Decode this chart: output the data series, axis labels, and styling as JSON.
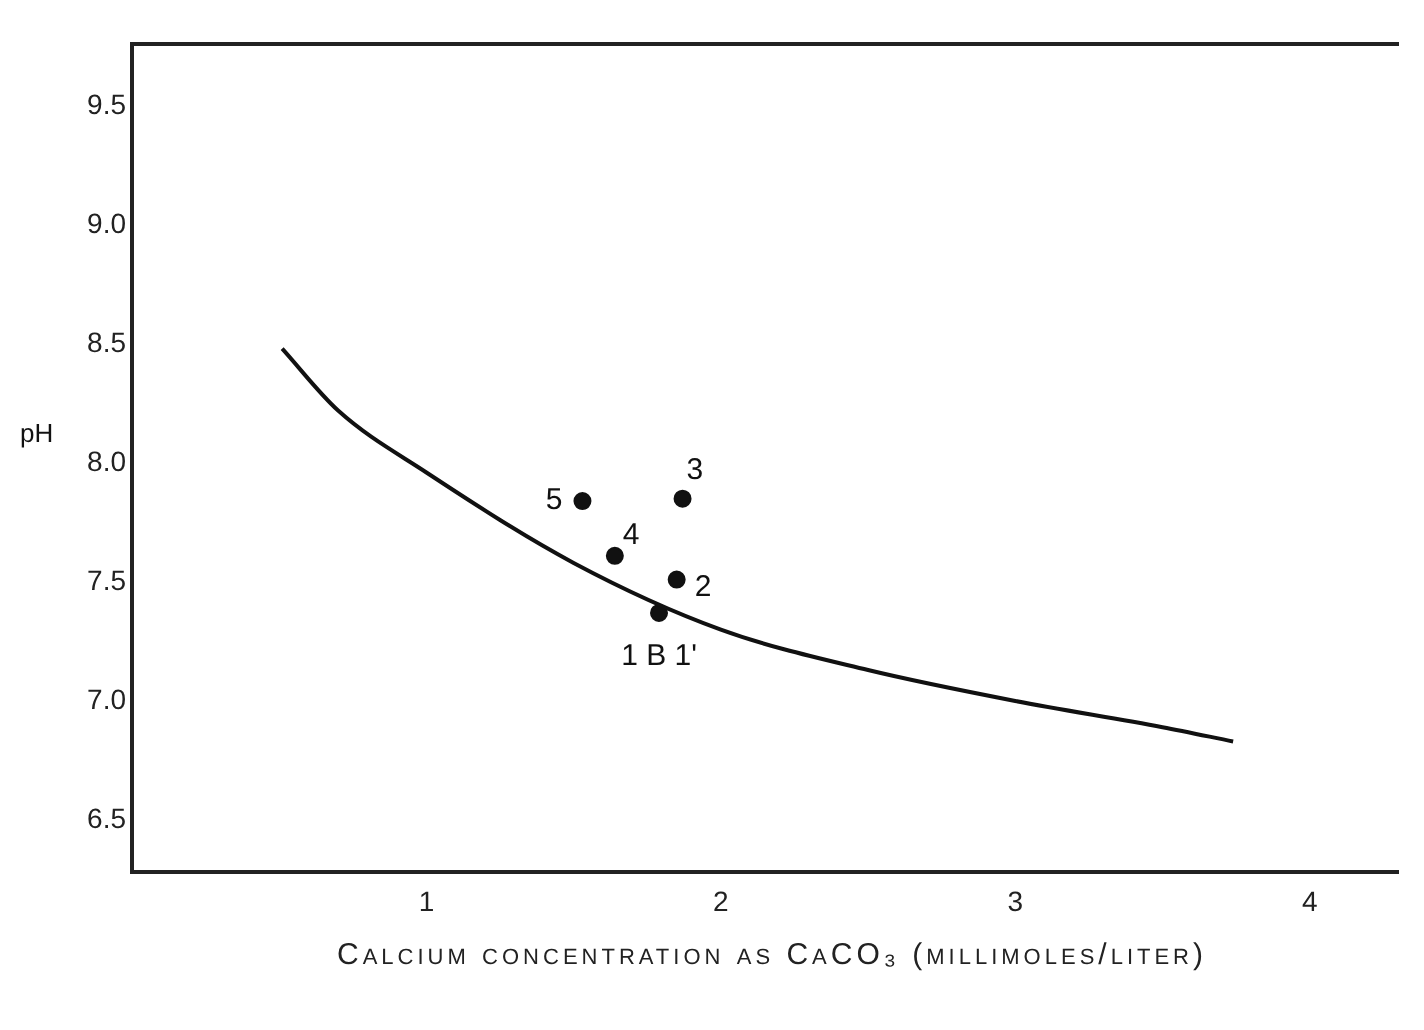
{
  "chart_data": {
    "type": "scatter",
    "xlabel": "Calcium concentration as CaCO₃ (millimoles/liter)",
    "ylabel": "pH",
    "xlim": [
      0,
      4.3
    ],
    "ylim": [
      6.28,
      9.76
    ],
    "xticks": [
      1,
      2,
      3,
      4
    ],
    "yticks": [
      6.5,
      {
        "value": 7,
        "label": "7.0"
      },
      7.5,
      {
        "value": 8,
        "label": "8.0"
      },
      8.5,
      {
        "value": 9,
        "label": "9.0"
      },
      9.5
    ],
    "grid": false,
    "legend": false,
    "series": [
      {
        "type": "line",
        "color": "#111111",
        "marker": "none",
        "line_style": "solid",
        "x": [
          0.51,
          0.7,
          1,
          1.5,
          2,
          2.5,
          3,
          3.5,
          3.74
        ],
        "values": [
          8.48,
          8.22,
          7.96,
          7.58,
          7.3,
          7.13,
          7.0,
          6.89,
          6.83
        ]
      },
      {
        "type": "scatter",
        "color": "#111111",
        "marker": "circle",
        "x": [
          1.53,
          1.64,
          1.87,
          1.85,
          1.79
        ],
        "values": [
          7.84,
          7.61,
          7.85,
          7.51,
          7.37
        ]
      }
    ],
    "annotations": [
      {
        "text": "5",
        "x": 1.53,
        "y": 7.84
      },
      {
        "text": "4",
        "x": 1.64,
        "y": 7.61
      },
      {
        "text": "3",
        "x": 1.87,
        "y": 7.85
      },
      {
        "text": "2",
        "x": 1.85,
        "y": 7.51
      },
      {
        "text": "1 B 1'",
        "x": 1.79,
        "y": 7.37
      }
    ]
  }
}
